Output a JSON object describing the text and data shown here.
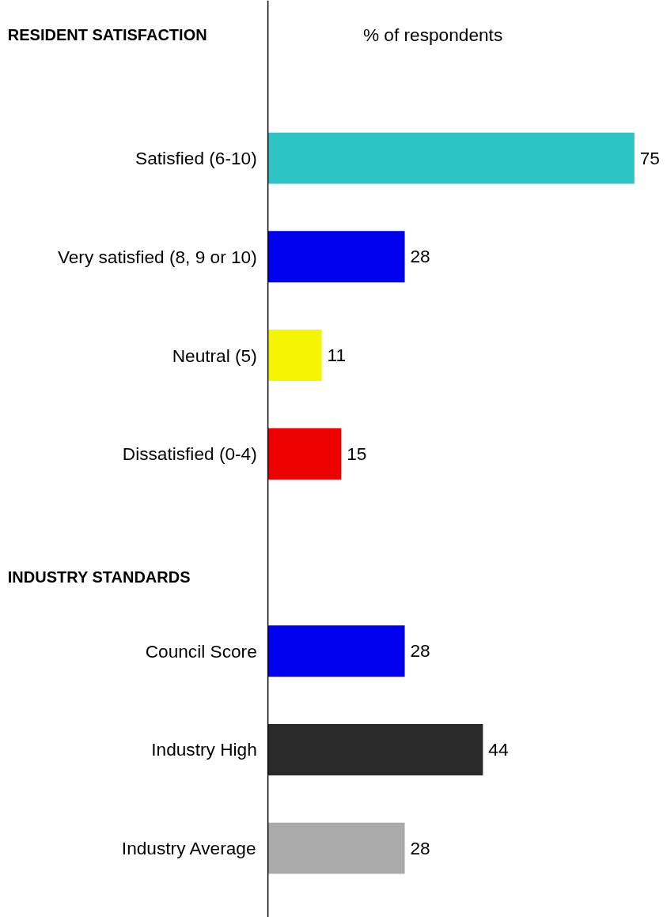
{
  "chart_data": {
    "type": "bar",
    "orientation": "horizontal",
    "xlabel": "% of respondents",
    "categories": [
      "Satisfied (6-10)",
      "Very satisfied (8, 9 or 10)",
      "Neutral (5)",
      "Dissatisfied (0-4)",
      null,
      "Council Score",
      "Industry High",
      "Industry Average"
    ],
    "values": [
      75,
      28,
      11,
      15,
      null,
      28,
      44,
      28
    ],
    "colors": [
      "#2ec4c4",
      "#0000ee",
      "#f5f500",
      "#ee0000",
      "#ffffff",
      "#0000ee",
      "#2a2a2a",
      "#aaaaaa"
    ],
    "data_labels": true,
    "annotations": [
      "RESIDENT SATISFACTION",
      "INDUSTRY STANDARDS"
    ]
  }
}
